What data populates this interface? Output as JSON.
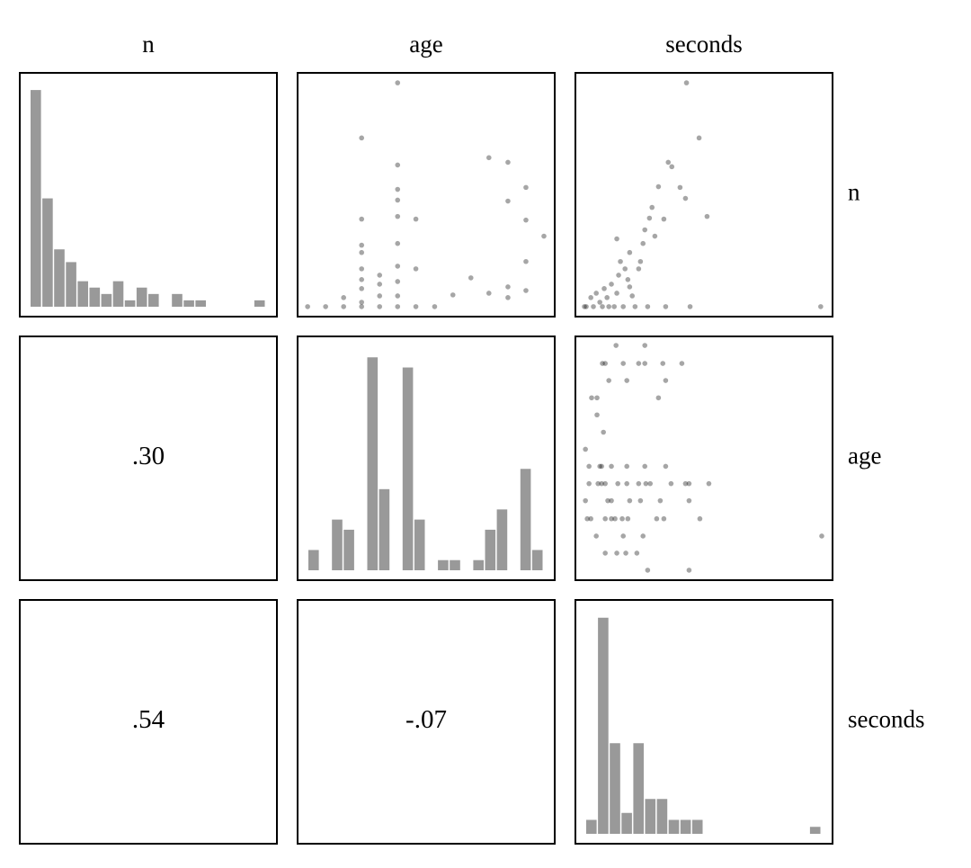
{
  "chart_data": {
    "type": "pairs",
    "variables": [
      "n",
      "age",
      "seconds"
    ],
    "histograms": [
      {
        "counts": [
          34,
          17,
          9,
          7,
          4,
          3,
          2,
          4,
          1,
          3,
          2,
          0,
          2,
          1,
          1,
          0,
          0,
          0,
          0,
          1
        ],
        "ylim": [
          0,
          35
        ],
        "color": "#999999"
      },
      {
        "counts": [
          2,
          0,
          5,
          4,
          0,
          21,
          8,
          0,
          20,
          5,
          0,
          1,
          1,
          0,
          1,
          4,
          6,
          0,
          10,
          2
        ],
        "ylim": [
          0,
          22
        ],
        "color": "#999999"
      },
      {
        "counts": [
          2,
          31,
          13,
          3,
          13,
          5,
          5,
          2,
          2,
          2,
          0,
          0,
          0,
          0,
          0,
          0,
          0,
          0,
          0,
          1
        ],
        "ylim": [
          0,
          32
        ],
        "color": "#999999"
      }
    ],
    "scatter": [
      {
        "xlim": [
          0,
          100
        ],
        "ylim": [
          0,
          100
        ],
        "color": "#000000",
        "x": [
          3.9,
          10.9,
          17.9,
          17.9,
          24.9,
          24.9,
          24.9,
          24.9,
          24.9,
          24.9,
          24.9,
          24.9,
          24.9,
          31.9,
          31.9,
          31.9,
          31.9,
          38.9,
          38.9,
          38.9,
          38.9,
          38.9,
          38.9,
          38.9,
          38.9,
          38.9,
          38.9,
          46,
          46,
          46,
          53.3,
          60.4,
          67.4,
          74.4,
          74.4,
          81.8,
          81.8,
          81.8,
          81.8,
          88.8,
          88.8,
          88.8,
          88.8,
          95.8
        ],
        "y": [
          4.1,
          4.1,
          4.1,
          7.8,
          4.1,
          5.9,
          11.5,
          15.2,
          19.6,
          26.3,
          29.3,
          40,
          73.3,
          4.1,
          8.5,
          13.3,
          17,
          4.1,
          8.5,
          14.4,
          20.7,
          30,
          41.1,
          47.8,
          52.2,
          62.2,
          95.9,
          4.1,
          19.6,
          40,
          4.1,
          8.9,
          15.9,
          9.6,
          65.2,
          7.8,
          12.2,
          47.4,
          63.3,
          10.7,
          22.6,
          39.6,
          53,
          33
        ]
      },
      {
        "xlim": [
          0,
          100
        ],
        "ylim": [
          0,
          100
        ],
        "color": "#000000",
        "x": [
          3.5,
          4.2,
          6,
          7,
          8.1,
          9.5,
          10.5,
          11.2,
          12.3,
          13,
          14,
          15.1,
          16.1,
          16.8,
          17.5,
          18.6,
          19.3,
          20.4,
          21.1,
          22.1,
          23.2,
          24.6,
          25.3,
          26.3,
          27,
          28.1,
          28.8,
          29.8,
          30.9,
          32.3,
          34.4,
          35.1,
          36.1,
          37.5,
          40.7,
          42.8,
          43.2,
          44.6,
          48.1,
          51.2,
          95.4,
          16.1,
          21.1
        ],
        "y": [
          4.1,
          4.1,
          7.8,
          4.1,
          9.6,
          5.9,
          4.1,
          11.5,
          7.8,
          4.1,
          13.3,
          4.1,
          9.6,
          17,
          22.6,
          4.1,
          19.6,
          15.2,
          12.2,
          8.5,
          4.1,
          19.6,
          22.6,
          30,
          35.6,
          4.1,
          40.4,
          44.8,
          33,
          53.3,
          40,
          4.1,
          63.3,
          61.5,
          53,
          48.5,
          95.9,
          4.1,
          73.3,
          41.1,
          4.1,
          31.9,
          26.3
        ]
      },
      {
        "xlim": [
          0,
          100
        ],
        "ylim": [
          0,
          100
        ],
        "color": "#000000",
        "x": [
          15.8,
          27,
          10.5,
          11.6,
          18.6,
          24.6,
          27,
          34,
          41.4,
          13,
          20,
          35.1,
          6.3,
          8.4,
          32.3,
          8.4,
          10.9,
          3.9,
          5.3,
          9.5,
          10.2,
          14,
          20,
          27,
          35.1,
          5.3,
          8.8,
          10.2,
          11.6,
          16.5,
          20,
          24.6,
          27.4,
          29.1,
          37.2,
          42.8,
          44.2,
          51.9,
          3.9,
          12.6,
          14,
          21.1,
          25.3,
          33,
          44.2,
          4.6,
          6,
          11.6,
          14,
          15.4,
          18.2,
          20.4,
          31.6,
          34.4,
          48.4,
          95.8,
          8.1,
          18.6,
          26.3,
          11.6,
          16.1,
          19.6,
          23.9,
          28.1,
          44.2
        ],
        "y": [
          96.3,
          96.3,
          88.9,
          88.9,
          88.9,
          88.9,
          88.9,
          88.9,
          88.9,
          81.9,
          81.9,
          81.9,
          74.8,
          74.8,
          74.8,
          67.8,
          60.7,
          53.7,
          46.7,
          46.7,
          46.7,
          46.7,
          46.7,
          46.7,
          46.7,
          39.6,
          39.6,
          39.6,
          39.6,
          39.6,
          39.6,
          39.6,
          39.6,
          39.6,
          39.6,
          39.6,
          39.6,
          39.6,
          32.6,
          32.6,
          32.6,
          32.6,
          32.6,
          32.6,
          32.6,
          25.2,
          25.2,
          25.2,
          25.2,
          25.2,
          25.2,
          25.2,
          25.2,
          25.2,
          25.2,
          18.1,
          18.1,
          18.1,
          18.1,
          11.1,
          11.1,
          11.1,
          11.1,
          4.1,
          4.1
        ]
      }
    ],
    "correlations": [
      {
        "value": 0.3,
        "value_label": ".30"
      },
      {
        "value": 0.54,
        "value_label": ".54"
      },
      {
        "value": -0.07,
        "value_label": "-.07"
      }
    ]
  }
}
